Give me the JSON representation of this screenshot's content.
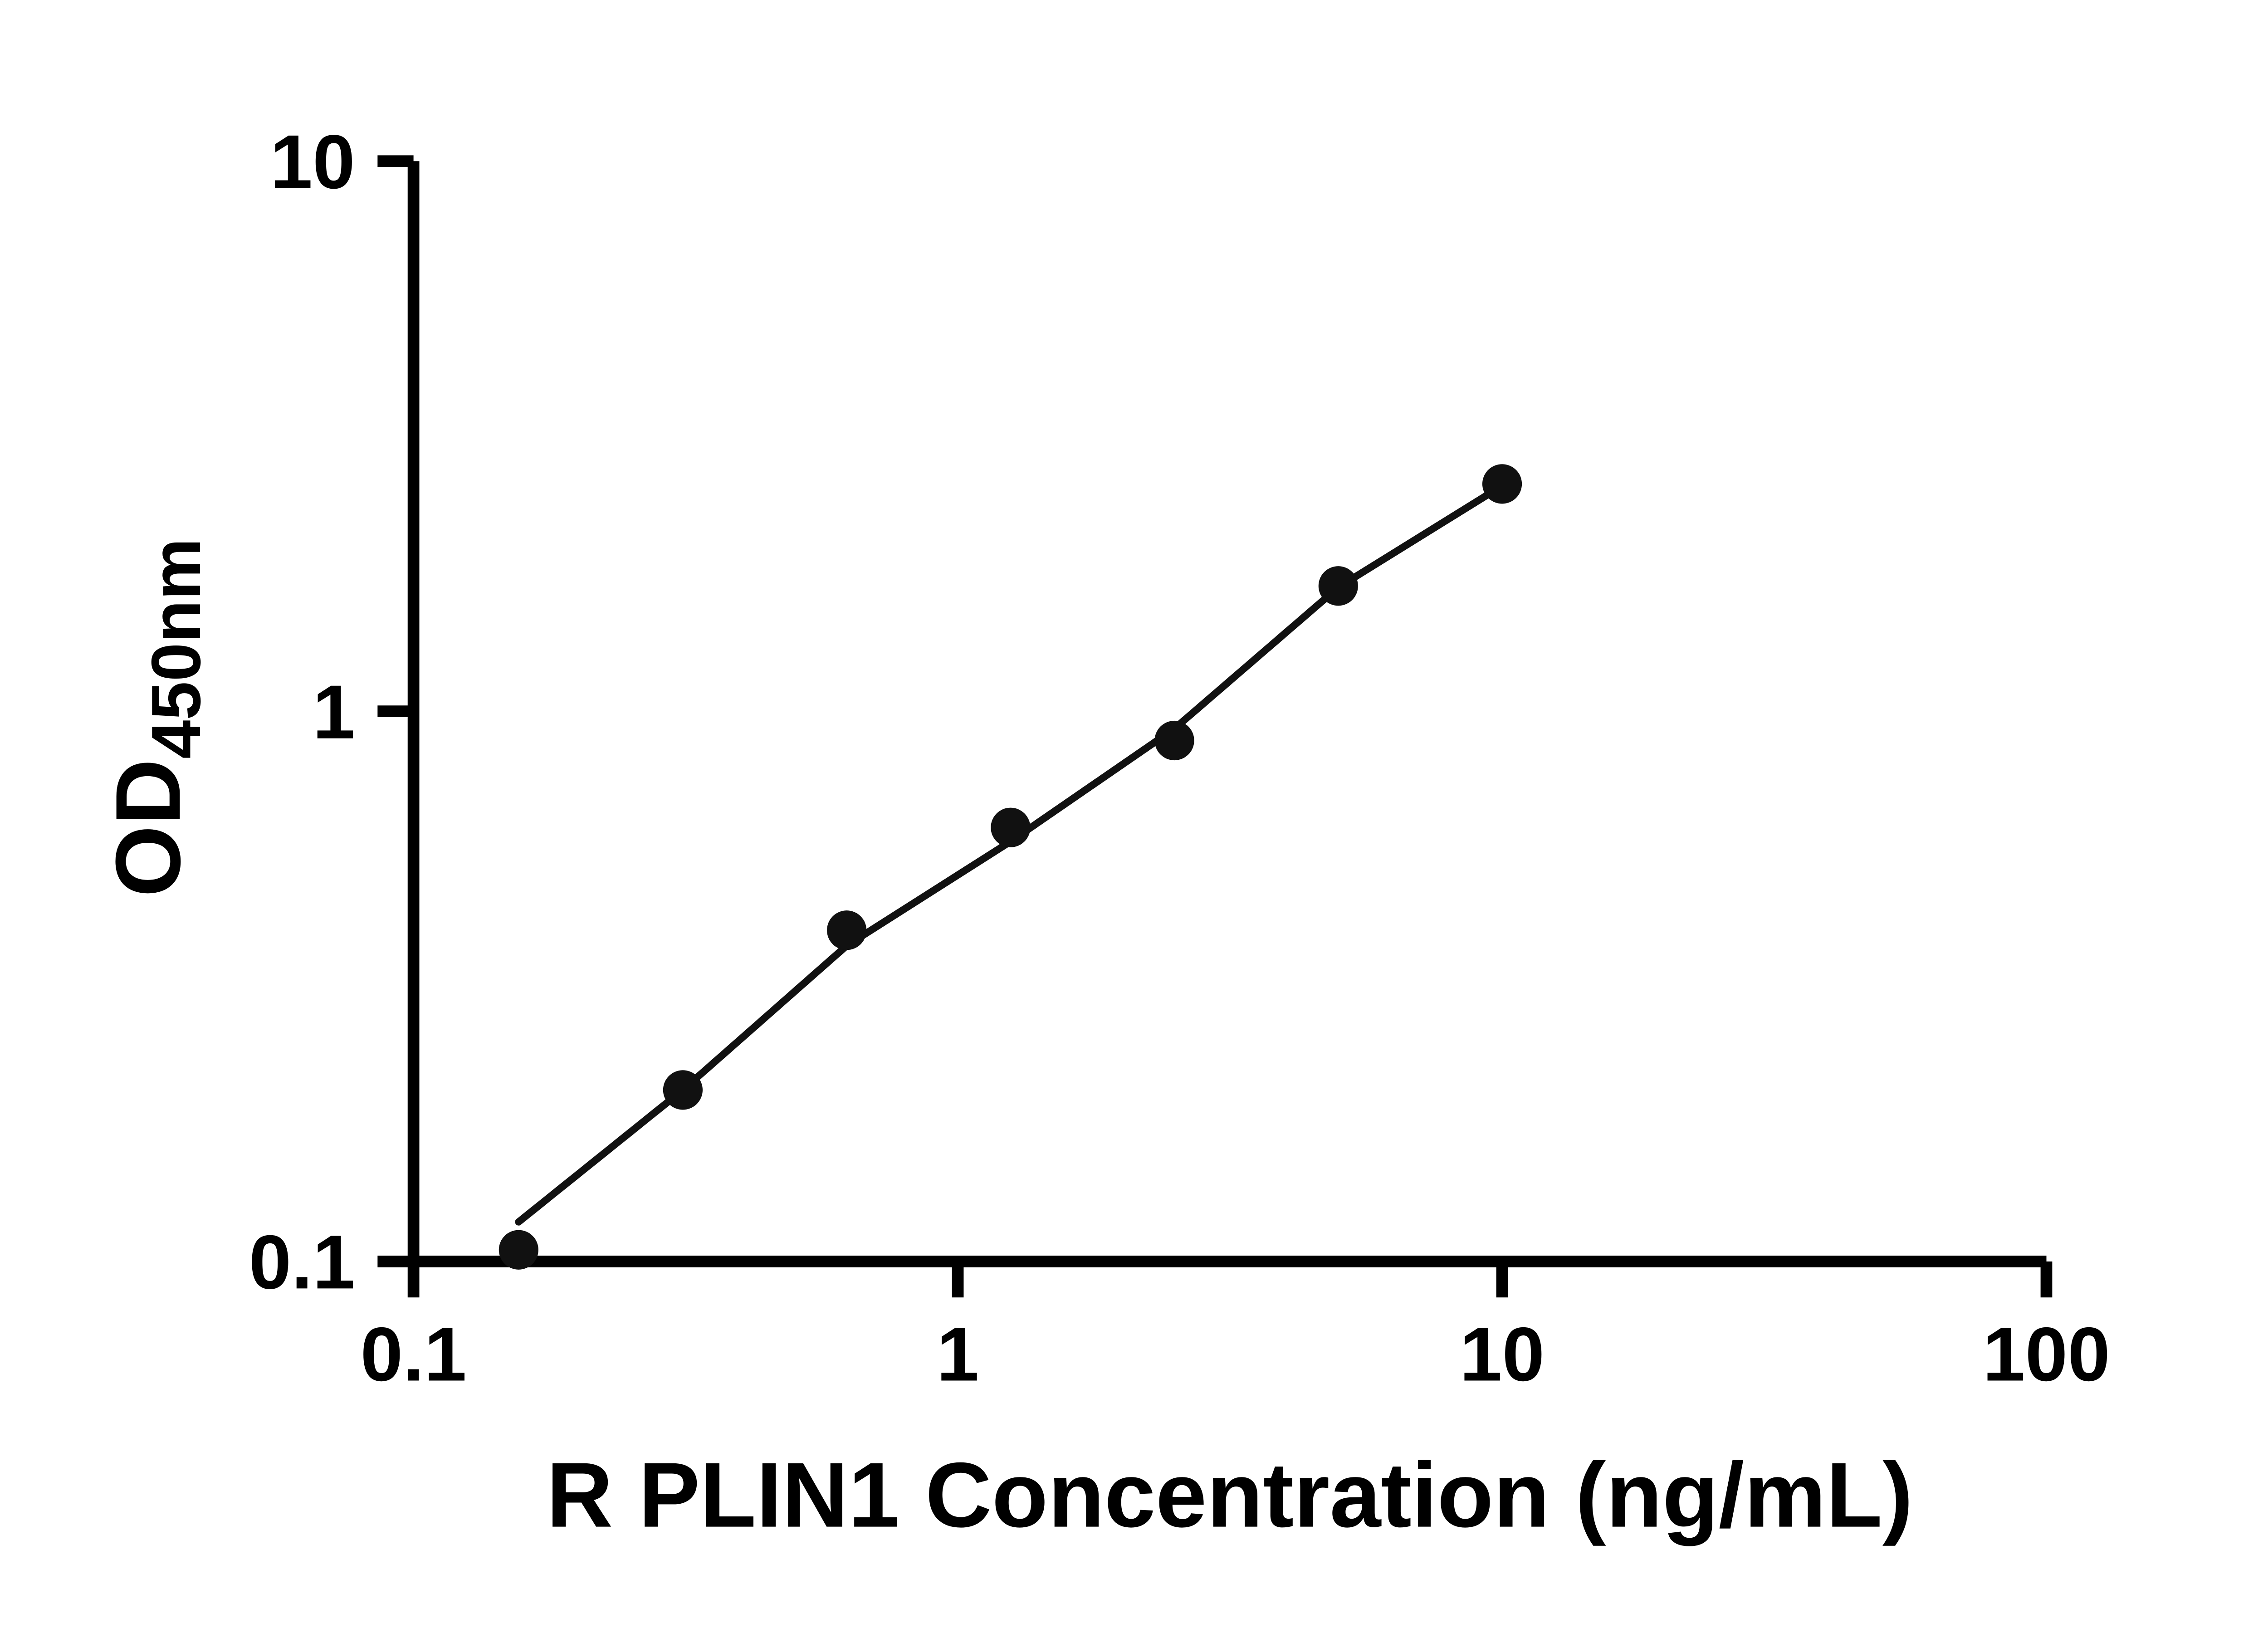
{
  "chart_data": {
    "type": "scatter",
    "title": "",
    "xlabel": "R PLIN1 Concentration (ng/mL)",
    "ylabel_main": "OD",
    "ylabel_sub": "450nm",
    "xscale": "log",
    "yscale": "log",
    "xlim": [
      0.1,
      100
    ],
    "ylim": [
      0.1,
      10
    ],
    "grid": false,
    "legend_position": "none",
    "x": [
      0.156,
      0.3125,
      0.625,
      1.25,
      2.5,
      5,
      10
    ],
    "y": [
      0.105,
      0.205,
      0.4,
      0.615,
      0.885,
      1.69,
      2.59
    ],
    "fit_line": {
      "x": [
        0.156,
        0.3125,
        0.625,
        1.25,
        2.5,
        5,
        10
      ],
      "y": [
        0.118,
        0.205,
        0.375,
        0.58,
        0.93,
        1.68,
        2.57
      ]
    },
    "x_ticks": [
      {
        "value": 0.1,
        "label": "0.1"
      },
      {
        "value": 1,
        "label": "1"
      },
      {
        "value": 10,
        "label": "10"
      },
      {
        "value": 100,
        "label": "100"
      }
    ],
    "y_ticks": [
      {
        "value": 0.1,
        "label": "0.1"
      },
      {
        "value": 1,
        "label": "1"
      },
      {
        "value": 10,
        "label": "10"
      }
    ],
    "colors": {
      "point": "#111111",
      "line": "#111111",
      "axis": "#000000",
      "background": "#ffffff"
    }
  }
}
